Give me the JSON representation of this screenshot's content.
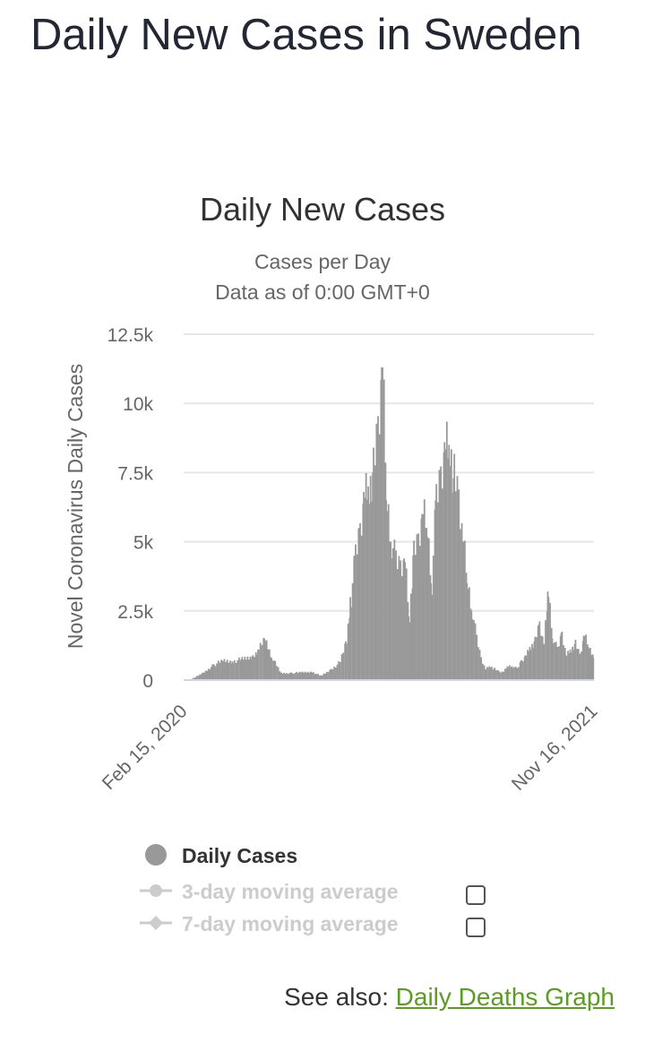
{
  "page": {
    "title": "Daily New Cases in Sweden"
  },
  "colors": {
    "bar": "#999999",
    "grid": "#e6e6e6",
    "axis_line": "#ccd6eb",
    "text": "#333333",
    "muted": "#666666",
    "legend_off": "#cccccc",
    "link": "#5c9c23"
  },
  "chart_data": {
    "type": "bar",
    "title": "Daily New Cases",
    "subtitle_lines": [
      "Cases per Day",
      "Data as of 0:00 GMT+0"
    ],
    "ylabel": "Novel Coronavirus Daily Cases",
    "ylim": [
      0,
      12500
    ],
    "yticks": [
      0,
      2500,
      5000,
      7500,
      10000,
      12500
    ],
    "ytick_labels": [
      "0",
      "2.5k",
      "5k",
      "7.5k",
      "10k",
      "12.5k"
    ],
    "x_start": "2020-02-15",
    "x_end": "2021-11-16",
    "xtick_labels": [
      "Feb 15, 2020",
      "Nov 16, 2021"
    ],
    "grid": true,
    "legend_position": "bottom",
    "series": [
      {
        "name": "Daily Cases",
        "visible": true,
        "x": [
          "2020-03-01",
          "2020-03-15",
          "2020-04-01",
          "2020-04-15",
          "2020-05-01",
          "2020-05-15",
          "2020-06-01",
          "2020-06-10",
          "2020-06-20",
          "2020-07-01",
          "2020-07-15",
          "2020-08-01",
          "2020-08-15",
          "2020-09-01",
          "2020-09-15",
          "2020-10-01",
          "2020-10-15",
          "2020-10-25",
          "2020-11-01",
          "2020-11-08",
          "2020-11-15",
          "2020-11-22",
          "2020-11-29",
          "2020-12-06",
          "2020-12-13",
          "2020-12-20",
          "2020-12-27",
          "2021-01-03",
          "2021-01-10",
          "2021-01-17",
          "2021-01-24",
          "2021-01-31",
          "2021-02-07",
          "2021-02-14",
          "2021-02-21",
          "2021-02-28",
          "2021-03-07",
          "2021-03-14",
          "2021-03-21",
          "2021-03-28",
          "2021-04-04",
          "2021-04-11",
          "2021-04-18",
          "2021-04-25",
          "2021-05-02",
          "2021-05-09",
          "2021-05-16",
          "2021-05-23",
          "2021-05-30",
          "2021-06-06",
          "2021-06-13",
          "2021-06-20",
          "2021-06-27",
          "2021-07-04",
          "2021-07-11",
          "2021-07-18",
          "2021-07-25",
          "2021-08-01",
          "2021-08-08",
          "2021-08-15",
          "2021-08-22",
          "2021-08-29",
          "2021-09-05",
          "2021-09-12",
          "2021-09-19",
          "2021-09-26",
          "2021-10-03",
          "2021-10-10",
          "2021-10-17",
          "2021-10-24",
          "2021-10-31",
          "2021-11-07",
          "2021-11-15"
        ],
        "values": [
          80,
          250,
          550,
          700,
          680,
          750,
          850,
          1100,
          1500,
          800,
          250,
          250,
          280,
          300,
          150,
          380,
          650,
          1400,
          3000,
          4500,
          5500,
          6800,
          7000,
          7500,
          9000,
          11300,
          6500,
          5000,
          4300,
          4200,
          4400,
          2300,
          4500,
          5000,
          6000,
          5500,
          3500,
          6500,
          7500,
          8600,
          8500,
          7300,
          6500,
          5000,
          3500,
          2500,
          1500,
          800,
          400,
          500,
          400,
          300,
          300,
          500,
          500,
          400,
          700,
          900,
          1200,
          1400,
          2000,
          1300,
          3200,
          1500,
          1100,
          1700,
          900,
          1100,
          1300,
          900,
          1600,
          1200,
          800
        ]
      },
      {
        "name": "3-day moving average",
        "visible": false
      },
      {
        "name": "7-day moving average",
        "visible": false
      }
    ]
  },
  "legend": {
    "items": [
      {
        "label": "Daily Cases",
        "marker": "circle",
        "active": true
      },
      {
        "label": "3-day moving average",
        "marker": "line-circle",
        "active": false
      },
      {
        "label": "7-day moving average",
        "marker": "line-diamond",
        "active": false
      }
    ]
  },
  "see_also": {
    "prefix": "See also: ",
    "link_text": "Daily Deaths Graph"
  }
}
